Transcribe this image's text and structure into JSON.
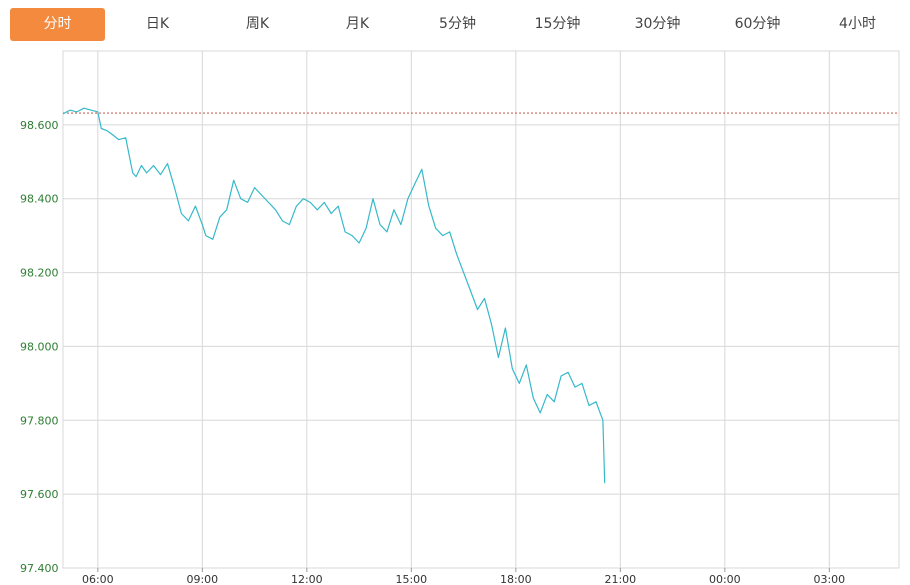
{
  "tabs": [
    {
      "label": "分时",
      "active": true
    },
    {
      "label": "日K"
    },
    {
      "label": "周K"
    },
    {
      "label": "月K"
    },
    {
      "label": "5分钟"
    },
    {
      "label": "15分钟"
    },
    {
      "label": "30分钟"
    },
    {
      "label": "60分钟"
    },
    {
      "label": "4小时"
    }
  ],
  "colors": {
    "active_tab": "#f38a3d",
    "line": "#35b9c9",
    "reference_line": "#c0392b",
    "grid": "#d8d8d8",
    "y_label": "#2e7d32"
  },
  "chart_data": {
    "type": "line",
    "title": "",
    "xlabel": "",
    "ylabel": "",
    "x_ticks": [
      "06:00",
      "09:00",
      "12:00",
      "15:00",
      "18:00",
      "21:00",
      "00:00",
      "03:00"
    ],
    "y_ticks": [
      "97.400",
      "97.600",
      "97.800",
      "98.000",
      "98.200",
      "98.400",
      "98.600"
    ],
    "ylim": [
      97.4,
      98.8
    ],
    "x_range_hours": [
      5.0,
      29.0
    ],
    "grid": true,
    "reference_value": 98.632,
    "series": [
      {
        "x": [
          5.0,
          5.2,
          5.4,
          5.6,
          5.8,
          6.0,
          6.1,
          6.25,
          6.4,
          6.6,
          6.8,
          7.0,
          7.1,
          7.25,
          7.4,
          7.6,
          7.8,
          8.0,
          8.2,
          8.4,
          8.6,
          8.8,
          9.0,
          9.1,
          9.3,
          9.5,
          9.7,
          9.9,
          10.1,
          10.3,
          10.5,
          10.7,
          10.9,
          11.1,
          11.3,
          11.5,
          11.7,
          11.9,
          12.1,
          12.3,
          12.5,
          12.7,
          12.9,
          13.1,
          13.3,
          13.5,
          13.7,
          13.9,
          14.1,
          14.3,
          14.5,
          14.7,
          14.9,
          15.1,
          15.3,
          15.5,
          15.7,
          15.9,
          16.1,
          16.3,
          16.5,
          16.7,
          16.9,
          17.1,
          17.3,
          17.5,
          17.7,
          17.9,
          18.1,
          18.3,
          18.5,
          18.7,
          18.9,
          19.1,
          19.3,
          19.5,
          19.7,
          19.9,
          20.1,
          20.3,
          20.5,
          20.55
        ],
        "y": [
          98.63,
          98.64,
          98.635,
          98.645,
          98.64,
          98.635,
          98.59,
          98.585,
          98.575,
          98.56,
          98.565,
          98.47,
          98.46,
          98.49,
          98.47,
          98.49,
          98.465,
          98.495,
          98.43,
          98.36,
          98.34,
          98.38,
          98.33,
          98.3,
          98.29,
          98.35,
          98.37,
          98.45,
          98.4,
          98.39,
          98.43,
          98.41,
          98.39,
          98.37,
          98.34,
          98.33,
          98.38,
          98.4,
          98.39,
          98.37,
          98.39,
          98.36,
          98.38,
          98.31,
          98.3,
          98.28,
          98.32,
          98.4,
          98.33,
          98.31,
          98.37,
          98.33,
          98.4,
          98.44,
          98.48,
          98.38,
          98.32,
          98.3,
          98.31,
          98.25,
          98.2,
          98.15,
          98.1,
          98.13,
          98.06,
          97.97,
          98.05,
          97.94,
          97.9,
          97.95,
          97.86,
          97.82,
          97.87,
          97.85,
          97.92,
          97.93,
          97.89,
          97.9,
          97.84,
          97.85,
          97.8,
          97.63
        ]
      }
    ]
  }
}
